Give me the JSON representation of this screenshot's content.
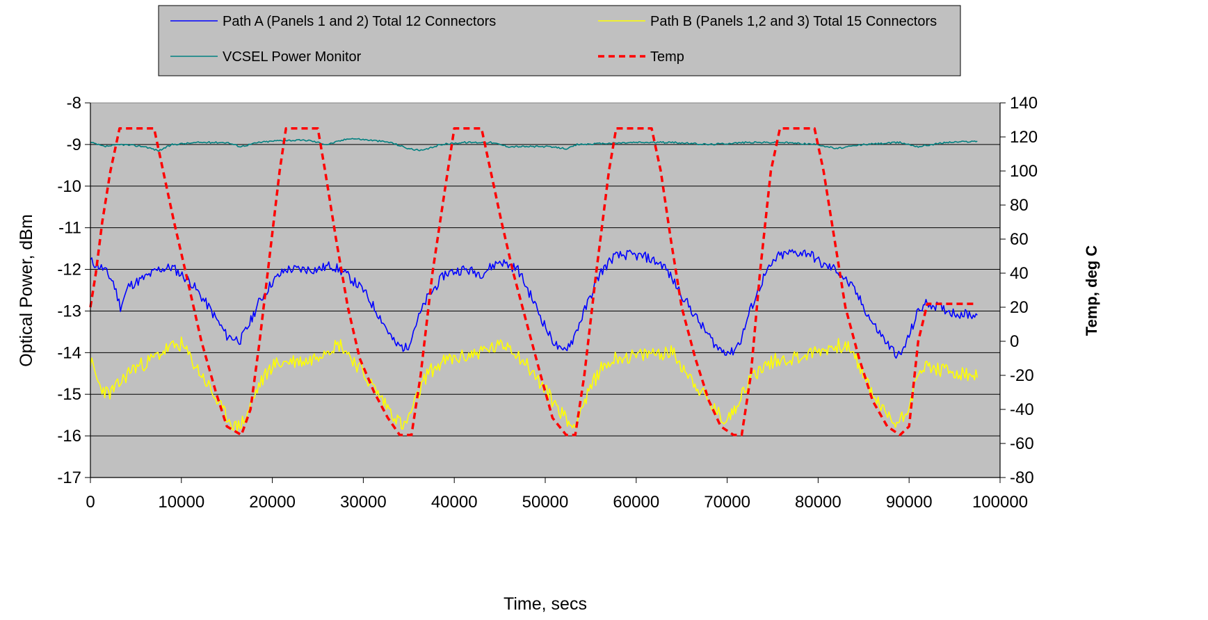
{
  "chart_data": {
    "type": "line",
    "xlabel": "Time, secs",
    "ylabel": "Optical Power, dBm",
    "y2label": "Temp, deg C",
    "xlim": [
      0,
      100000
    ],
    "ylim": [
      -17,
      -8
    ],
    "y2lim": [
      -80,
      140
    ],
    "xticks": [
      0,
      10000,
      20000,
      30000,
      40000,
      50000,
      60000,
      70000,
      80000,
      90000,
      100000
    ],
    "yticks": [
      -8,
      -9,
      -10,
      -11,
      -12,
      -13,
      -14,
      -15,
      -16,
      -17
    ],
    "y2ticks": [
      140,
      120,
      100,
      80,
      60,
      40,
      20,
      0,
      -20,
      -40,
      -60,
      -80
    ],
    "grid": "horizontal",
    "legend_position": "top",
    "plot_background": "#c0c0c0",
    "series": [
      {
        "name": "Path A (Panels 1 and 2) Total 12 Connectors",
        "axis": "left",
        "color": "#0000ff",
        "style": "solid",
        "noise": 0.12,
        "seed": 11,
        "x": [
          0,
          1500,
          2500,
          3300,
          4200,
          6000,
          7500,
          9000,
          11000,
          13000,
          15000,
          16500,
          17500,
          18500,
          20000,
          21500,
          23000,
          25000,
          26500,
          28000,
          30000,
          32000,
          33500,
          34800,
          35800,
          37000,
          39000,
          41000,
          43000,
          45000,
          47000,
          49000,
          50500,
          51800,
          53000,
          54500,
          56000,
          57500,
          59000,
          61000,
          63000,
          65000,
          67000,
          69000,
          70500,
          71500,
          72500,
          74000,
          75500,
          77000,
          79000,
          80500,
          82000,
          84000,
          86000,
          88000,
          89000,
          90000,
          91000,
          92000,
          95000,
          97500
        ],
        "y": [
          -11.8,
          -12.0,
          -12.3,
          -12.9,
          -12.4,
          -12.2,
          -12.0,
          -11.95,
          -12.3,
          -12.9,
          -13.6,
          -13.7,
          -13.3,
          -12.8,
          -12.3,
          -12.0,
          -12.0,
          -12.0,
          -11.9,
          -12.1,
          -12.5,
          -13.2,
          -13.8,
          -13.9,
          -13.3,
          -12.7,
          -12.1,
          -12.0,
          -12.1,
          -11.8,
          -12.0,
          -12.9,
          -13.6,
          -14.0,
          -13.7,
          -12.9,
          -12.1,
          -11.7,
          -11.65,
          -11.7,
          -11.9,
          -12.6,
          -13.3,
          -13.9,
          -14.0,
          -13.7,
          -13.0,
          -12.2,
          -11.7,
          -11.6,
          -11.6,
          -11.9,
          -12.0,
          -12.5,
          -13.3,
          -13.9,
          -14.1,
          -13.6,
          -13.0,
          -12.8,
          -13.05,
          -13.1
        ]
      },
      {
        "name": "Path B (Panels 1,2 and 3) Total 15 Connectors",
        "axis": "left",
        "color": "#ffff00",
        "style": "solid",
        "noise": 0.18,
        "seed": 23,
        "x": [
          0,
          1000,
          2000,
          3000,
          4500,
          6500,
          8500,
          10000,
          11500,
          13000,
          14500,
          16000,
          17000,
          18500,
          20000,
          22000,
          24000,
          26000,
          27500,
          29000,
          31000,
          33000,
          34500,
          35500,
          37000,
          39000,
          41000,
          44000,
          46000,
          48000,
          50000,
          52000,
          53000,
          54500,
          56000,
          58000,
          60000,
          62000,
          64000,
          66000,
          68000,
          69500,
          70500,
          71500,
          73000,
          75000,
          78000,
          81000,
          83000,
          84500,
          86000,
          87500,
          88500,
          89500,
          90500,
          91500,
          93000,
          97500
        ],
        "y": [
          -14.2,
          -14.8,
          -15.0,
          -14.8,
          -14.4,
          -14.2,
          -13.9,
          -13.8,
          -14.3,
          -14.8,
          -15.4,
          -15.8,
          -15.6,
          -14.8,
          -14.3,
          -14.2,
          -14.2,
          -13.9,
          -13.8,
          -14.2,
          -14.8,
          -15.4,
          -15.8,
          -15.3,
          -14.5,
          -14.2,
          -14.1,
          -13.9,
          -13.8,
          -14.3,
          -14.9,
          -15.5,
          -15.8,
          -15.1,
          -14.4,
          -14.1,
          -14.1,
          -14.0,
          -14.0,
          -14.6,
          -15.2,
          -15.6,
          -15.5,
          -15.0,
          -14.5,
          -14.2,
          -14.1,
          -13.9,
          -13.8,
          -14.3,
          -15.0,
          -15.5,
          -15.7,
          -15.5,
          -14.9,
          -14.3,
          -14.4,
          -14.6
        ]
      },
      {
        "name": "VCSEL Power Monitor",
        "axis": "left",
        "color": "#008080",
        "style": "solid",
        "noise": 0.02,
        "seed": 37,
        "x": [
          0,
          1500,
          3500,
          6000,
          7500,
          9000,
          12000,
          15000,
          16500,
          18500,
          21000,
          24000,
          26000,
          28500,
          31000,
          33000,
          35000,
          36500,
          38500,
          41000,
          44000,
          46000,
          50000,
          52500,
          53500,
          56000,
          60000,
          64000,
          68000,
          72000,
          76000,
          80000,
          82000,
          85000,
          89000,
          91000,
          94000,
          97500
        ],
        "y": [
          -8.95,
          -9.05,
          -9.0,
          -9.05,
          -9.15,
          -9.0,
          -8.95,
          -8.95,
          -9.05,
          -8.95,
          -8.9,
          -8.9,
          -9.0,
          -8.85,
          -8.9,
          -8.95,
          -9.1,
          -9.15,
          -9.0,
          -8.95,
          -8.95,
          -9.05,
          -9.05,
          -9.1,
          -9.0,
          -8.98,
          -8.95,
          -8.95,
          -9.0,
          -8.95,
          -8.95,
          -9.0,
          -9.1,
          -9.0,
          -8.95,
          -9.05,
          -8.95,
          -8.92
        ]
      },
      {
        "name": "Temp",
        "axis": "right",
        "color": "#ff0000",
        "style": "dashed",
        "x": [
          0,
          600,
          1300,
          2200,
          3200,
          7000,
          8000,
          9200,
          10500,
          12200,
          13800,
          15000,
          16600,
          17600,
          18600,
          19700,
          20800,
          21500,
          25000,
          25800,
          27000,
          28300,
          29600,
          31200,
          32700,
          34000,
          35300,
          36300,
          37600,
          39000,
          40000,
          43000,
          44000,
          45200,
          46500,
          48000,
          49500,
          50800,
          52300,
          53300,
          54300,
          55600,
          57000,
          57800,
          61700,
          62700,
          63800,
          65000,
          66500,
          68000,
          69300,
          70700,
          71600,
          72600,
          73600,
          74800,
          75800,
          79600,
          80600,
          81800,
          83000,
          84500,
          86000,
          87600,
          89000,
          90000,
          91000,
          92000,
          97500
        ],
        "y": [
          20,
          40,
          70,
          100,
          125,
          125,
          100,
          70,
          40,
          0,
          -30,
          -50,
          -55,
          -40,
          0,
          50,
          100,
          125,
          125,
          100,
          60,
          20,
          -10,
          -30,
          -45,
          -55,
          -55,
          -20,
          40,
          90,
          125,
          125,
          100,
          70,
          40,
          10,
          -20,
          -45,
          -55,
          -55,
          -20,
          40,
          100,
          125,
          125,
          100,
          60,
          20,
          -10,
          -35,
          -50,
          -55,
          -55,
          -20,
          40,
          100,
          125,
          125,
          100,
          60,
          20,
          -10,
          -35,
          -50,
          -55,
          -50,
          0,
          22,
          22
        ]
      }
    ]
  }
}
